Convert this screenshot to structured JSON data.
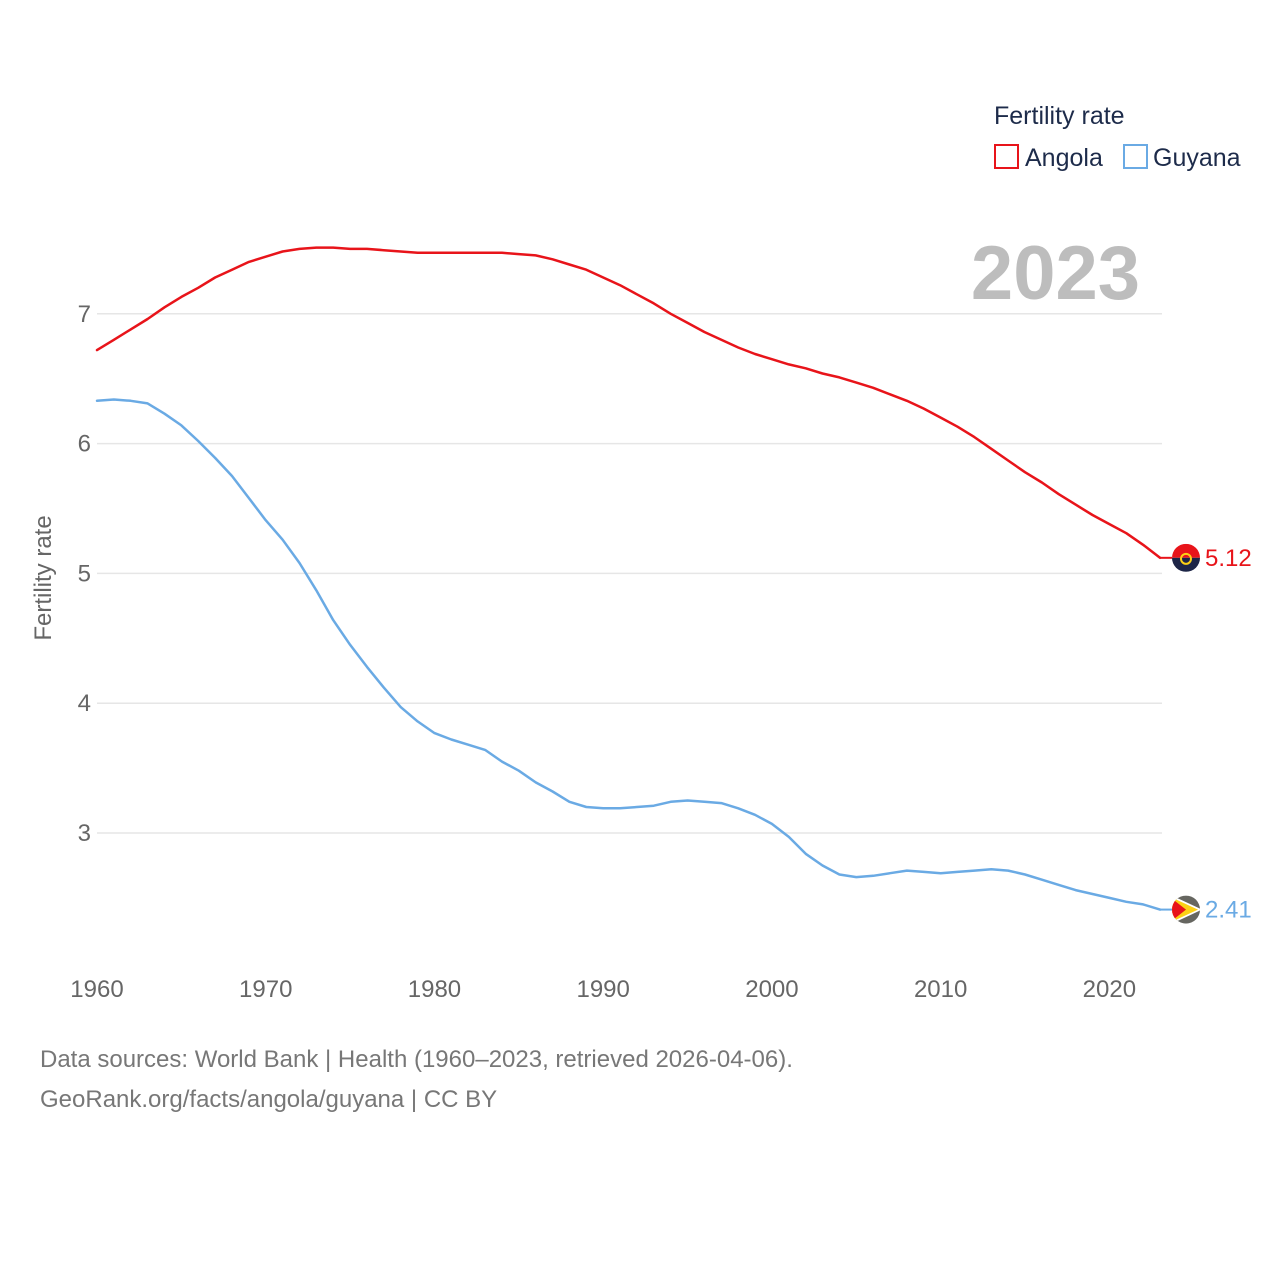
{
  "chart_data": {
    "type": "line",
    "legend_title": "Fertility rate",
    "ylabel": "Fertility rate",
    "year_label": "2023",
    "xlim": [
      1960,
      2023
    ],
    "ylim": [
      2.0,
      7.6
    ],
    "x_ticks": [
      1960,
      1970,
      1980,
      1990,
      2000,
      2010,
      2020
    ],
    "y_ticks": [
      3,
      4,
      5,
      6,
      7
    ],
    "x": [
      1960,
      1961,
      1962,
      1963,
      1964,
      1965,
      1966,
      1967,
      1968,
      1969,
      1970,
      1971,
      1972,
      1973,
      1974,
      1975,
      1976,
      1977,
      1978,
      1979,
      1980,
      1981,
      1982,
      1983,
      1984,
      1985,
      1986,
      1987,
      1988,
      1989,
      1990,
      1991,
      1992,
      1993,
      1994,
      1995,
      1996,
      1997,
      1998,
      1999,
      2000,
      2001,
      2002,
      2003,
      2004,
      2005,
      2006,
      2007,
      2008,
      2009,
      2010,
      2011,
      2012,
      2013,
      2014,
      2015,
      2016,
      2017,
      2018,
      2019,
      2020,
      2021,
      2022,
      2023
    ],
    "series": [
      {
        "name": "Angola",
        "color": "#e8141a",
        "end_value_label": "5.12",
        "values": [
          6.72,
          6.8,
          6.88,
          6.96,
          7.05,
          7.13,
          7.2,
          7.28,
          7.34,
          7.4,
          7.44,
          7.48,
          7.5,
          7.51,
          7.51,
          7.5,
          7.5,
          7.49,
          7.48,
          7.47,
          7.47,
          7.47,
          7.47,
          7.47,
          7.47,
          7.46,
          7.45,
          7.42,
          7.38,
          7.34,
          7.28,
          7.22,
          7.15,
          7.08,
          7.0,
          6.93,
          6.86,
          6.8,
          6.74,
          6.69,
          6.65,
          6.61,
          6.58,
          6.54,
          6.51,
          6.47,
          6.43,
          6.38,
          6.33,
          6.27,
          6.2,
          6.13,
          6.05,
          5.96,
          5.87,
          5.78,
          5.7,
          5.61,
          5.53,
          5.45,
          5.38,
          5.31,
          5.22,
          5.12
        ]
      },
      {
        "name": "Guyana",
        "color": "#6aaae4",
        "end_value_label": "2.41",
        "values": [
          6.33,
          6.34,
          6.33,
          6.31,
          6.23,
          6.14,
          6.02,
          5.89,
          5.75,
          5.58,
          5.41,
          5.26,
          5.08,
          4.87,
          4.64,
          4.45,
          4.28,
          4.12,
          3.97,
          3.86,
          3.77,
          3.72,
          3.68,
          3.64,
          3.55,
          3.48,
          3.39,
          3.32,
          3.24,
          3.2,
          3.19,
          3.19,
          3.2,
          3.21,
          3.24,
          3.25,
          3.24,
          3.23,
          3.19,
          3.14,
          3.07,
          2.97,
          2.84,
          2.75,
          2.68,
          2.66,
          2.67,
          2.69,
          2.71,
          2.7,
          2.69,
          2.7,
          2.71,
          2.72,
          2.71,
          2.68,
          2.64,
          2.6,
          2.56,
          2.53,
          2.5,
          2.47,
          2.45,
          2.41
        ]
      }
    ]
  },
  "source": {
    "line1": "Data sources: World Bank | Health (1960–2023, retrieved 2026-04-06).",
    "line2": "GeoRank.org/facts/angola/guyana | CC BY"
  },
  "colors": {
    "grid": "#e6e6e6",
    "axis_text": "#666666",
    "angola_flag_red": "#e8141a",
    "angola_flag_black": "#1d2547",
    "guyana_flag_green": "#666660",
    "guyana_flag_gold": "#fcd116"
  }
}
